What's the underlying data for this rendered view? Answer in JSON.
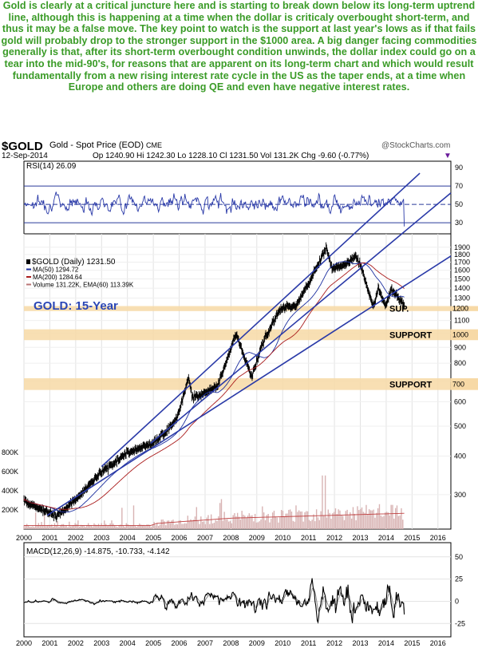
{
  "commentary": "Gold is clearly at a critical juncture here and is starting to break down below its long-term uptrend line, although this is happening at a time when the dollar is criticaly overbought short-term, and thus it may be a false move. The key point to watch is the support at last year's lows as if that fails gold will probably drop to the stronger support in the $1000 area. A big danger facing commodities generally is that, after its short-term overbought condition unwinds, the dollar index could go on a tear into the mid-90's, for reasons that are apparent on its long-term chart and which would result fundamentally from a new rising interest rate cycle in the US as the taper ends, at a time when Europe and others are doing QE and even have negative interest rates.",
  "header": {
    "symbol": "$GOLD",
    "name": "Gold - Spot Price (EOD)",
    "exchange": "CME",
    "watermark": "@StockCharts.com",
    "date": "12-Sep-2014",
    "ohlc": "Op 1240.90  Hi 1242.30  Lo 1228.10  Cl 1231.50  Vol 131.2K  Chg -9.60 (-0.77%)",
    "down_marker": "▼"
  },
  "chart_data": [
    {
      "type": "line",
      "panel": "rsi",
      "label": "RSI(14) 26.09",
      "yticks": [
        30,
        50,
        70,
        90
      ],
      "reference_lines": [
        30,
        50,
        70
      ],
      "ylim": [
        18,
        97
      ],
      "series": [
        {
          "values_range": [
            25,
            80
          ],
          "last": 26.09
        }
      ]
    },
    {
      "type": "line",
      "panel": "price",
      "title": "GOLD: 15-Year",
      "scale": "log",
      "xlabels": [
        "2000",
        "2001",
        "2002",
        "2003",
        "2004",
        "2005",
        "2006",
        "2007",
        "2008",
        "2009",
        "2010",
        "2011",
        "2012",
        "2013",
        "2014",
        "2015",
        "2016"
      ],
      "yticks_right": [
        300,
        400,
        500,
        600,
        700,
        800,
        900,
        1000,
        1100,
        1200,
        1300,
        1400,
        1500,
        1600,
        1700,
        1800,
        1900
      ],
      "ylim": [
        232,
        2100
      ],
      "legend": [
        {
          "label": "$GOLD (Daily) 1231.50",
          "color": "#000000"
        },
        {
          "label": "MA(50) 1294.72",
          "color": "#1c2fa0"
        },
        {
          "label": "MA(200) 1284.64",
          "color": "#aa1c1c"
        },
        {
          "label": "Volume 131.22K, EMA(60) 113.39K",
          "color": "#b97575"
        }
      ],
      "series": [
        {
          "name": "$GOLD (Daily)",
          "x": [
            2000.0,
            2001.3,
            2002.0,
            2003.0,
            2004.0,
            2005.0,
            2005.9,
            2006.37,
            2006.5,
            2007.0,
            2007.5,
            2008.2,
            2008.8,
            2009.2,
            2009.9,
            2010.5,
            2010.9,
            2011.7,
            2011.9,
            2012.3,
            2012.8,
            2013.0,
            2013.3,
            2013.5,
            2013.7,
            2014.0,
            2014.2,
            2014.7
          ],
          "y": [
            285,
            256,
            290,
            355,
            410,
            440,
            525,
            720,
            620,
            640,
            680,
            1000,
            720,
            920,
            1200,
            1230,
            1400,
            1900,
            1620,
            1650,
            1780,
            1680,
            1380,
            1220,
            1400,
            1220,
            1390,
            1231.5
          ]
        },
        {
          "name": "MA(50)",
          "last": 1294.72
        },
        {
          "name": "MA(200)",
          "last": 1284.64
        }
      ],
      "support_bands": [
        {
          "label": "SUP.",
          "value": 1200,
          "low": 1180,
          "high": 1225
        },
        {
          "label": "SUPPORT",
          "value": 1000,
          "low": 950,
          "high": 1030
        },
        {
          "label": "SUPPORT",
          "value": 700,
          "low": 655,
          "high": 715
        }
      ],
      "trendlines": [
        {
          "from": [
            2003.0,
            370
          ],
          "to": [
            2015.3,
            3300
          ]
        },
        {
          "from": [
            2000.9,
            257
          ],
          "to": [
            2016.5,
            1780
          ]
        },
        {
          "from": [
            2004.9,
            440
          ],
          "to": [
            2016.5,
            2850
          ]
        }
      ],
      "volume_ticks": [
        "200K",
        "400K",
        "600K",
        "800K"
      ],
      "volume_ylim": [
        0,
        900
      ]
    },
    {
      "type": "line",
      "panel": "macd",
      "label": "MACD(12,26,9) -14.875, -10.733, -4.142",
      "yticks": [
        -25,
        0,
        25,
        50
      ],
      "ylim": [
        -40,
        66
      ],
      "xlabels": [
        "2000",
        "2001",
        "2002",
        "2003",
        "2004",
        "2005",
        "2006",
        "2007",
        "2008",
        "2009",
        "2010",
        "2011",
        "2012",
        "2013",
        "2014",
        "2015",
        "2016"
      ],
      "series": [
        {
          "name": "MACD",
          "last": -14.875
        },
        {
          "name": "Signal",
          "last": -10.733
        },
        {
          "name": "Histogram",
          "last": -4.142
        }
      ]
    }
  ]
}
